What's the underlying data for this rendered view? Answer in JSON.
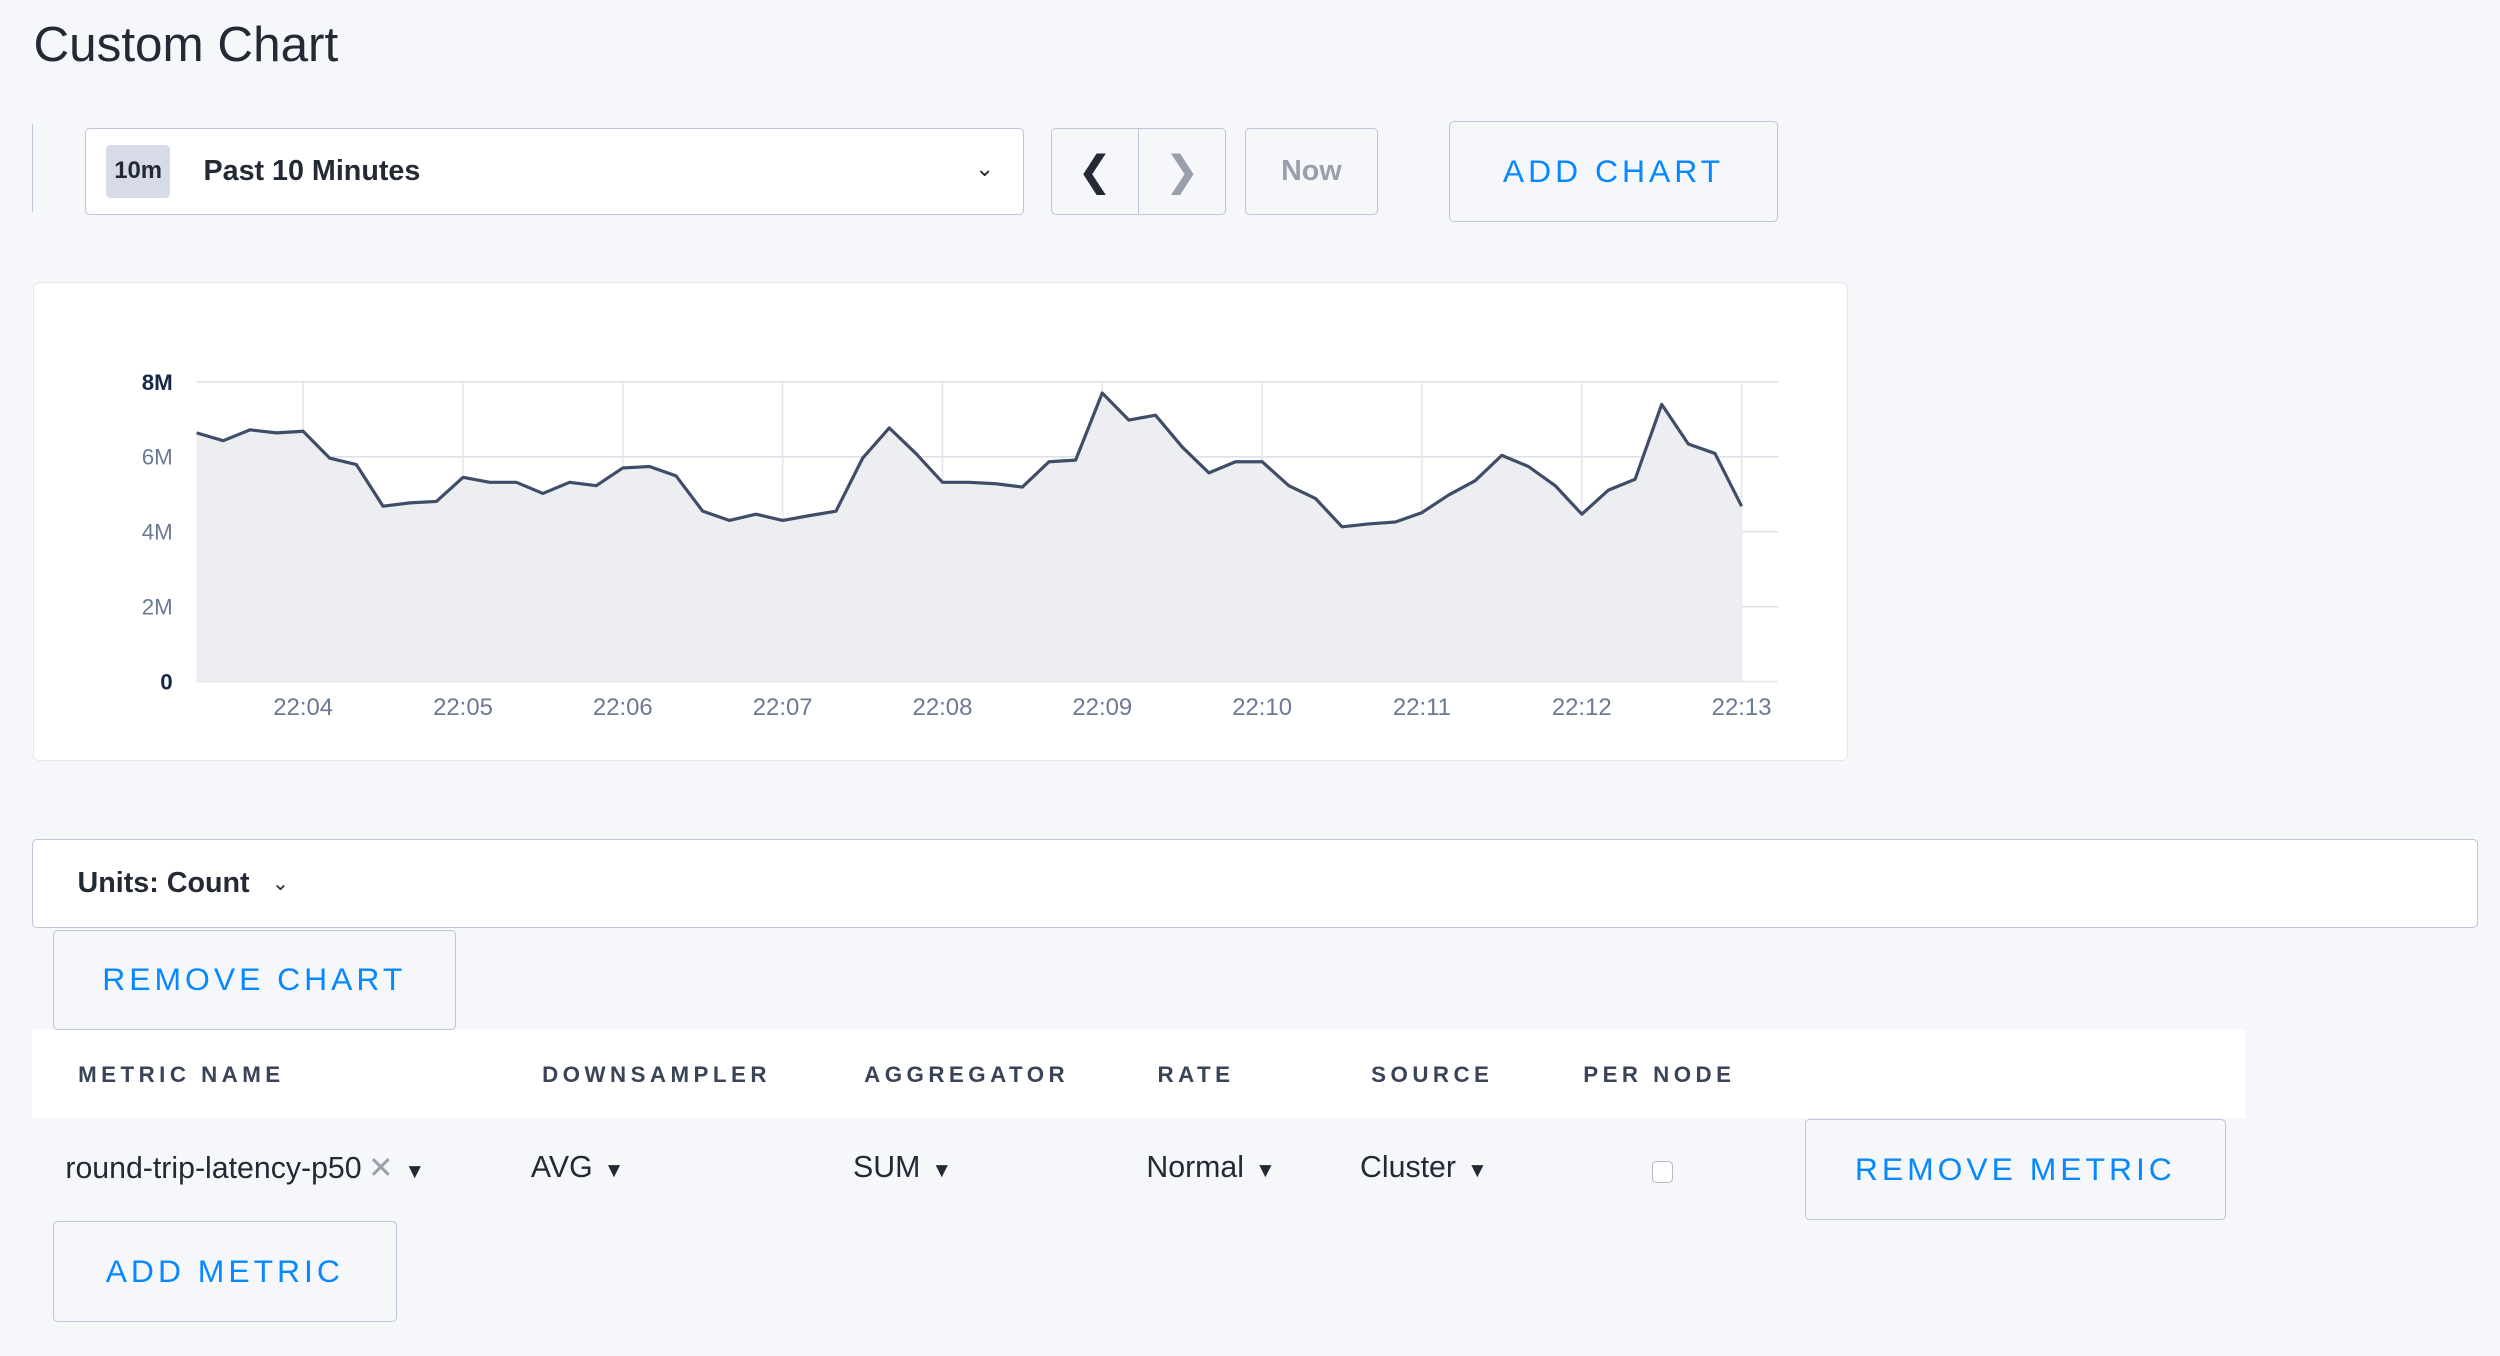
{
  "page": {
    "title": "Custom Chart"
  },
  "toolbar": {
    "range_badge": "10m",
    "range_label": "Past 10 Minutes",
    "prev_icon": "chevron-left-icon",
    "next_icon": "chevron-right-icon",
    "now_label": "Now",
    "add_chart_label": "ADD CHART"
  },
  "chart_data": {
    "type": "area",
    "y_ticks": [
      "0",
      "2M",
      "4M",
      "6M",
      "8M"
    ],
    "ylim": [
      0,
      8000000
    ],
    "x_ticks": [
      "22:04",
      "22:05",
      "22:06",
      "22:07",
      "22:08",
      "22:09",
      "22:10",
      "22:11",
      "22:12",
      "22:13"
    ],
    "xlim": [
      "22:03:20",
      "22:13:00"
    ],
    "grid": true,
    "line_color": "#3f4d67",
    "fill_color": "#eceef2",
    "x": [
      "22:03:20",
      "22:03:30",
      "22:03:40",
      "22:03:50",
      "22:04:00",
      "22:04:10",
      "22:04:20",
      "22:04:30",
      "22:04:40",
      "22:04:50",
      "22:05:00",
      "22:05:10",
      "22:05:20",
      "22:05:30",
      "22:05:40",
      "22:05:50",
      "22:06:00",
      "22:06:10",
      "22:06:20",
      "22:06:30",
      "22:06:40",
      "22:06:50",
      "22:07:00",
      "22:07:10",
      "22:07:20",
      "22:07:30",
      "22:07:40",
      "22:07:50",
      "22:08:00",
      "22:08:10",
      "22:08:20",
      "22:08:30",
      "22:08:40",
      "22:08:50",
      "22:09:00",
      "22:09:10",
      "22:09:20",
      "22:09:30",
      "22:09:40",
      "22:09:50",
      "22:10:00",
      "22:10:10",
      "22:10:20",
      "22:10:30",
      "22:10:40",
      "22:10:50",
      "22:11:00",
      "22:11:10",
      "22:11:20",
      "22:11:30",
      "22:11:40",
      "22:11:50",
      "22:12:00",
      "22:12:10",
      "22:12:20",
      "22:12:30",
      "22:12:40",
      "22:12:50",
      "22:13:00"
    ],
    "values": [
      6640000,
      6430000,
      6720000,
      6640000,
      6680000,
      5960000,
      5790000,
      4680000,
      4770000,
      4810000,
      5450000,
      5320000,
      5320000,
      5020000,
      5320000,
      5230000,
      5700000,
      5740000,
      5490000,
      4550000,
      4300000,
      4470000,
      4300000,
      4430000,
      4550000,
      5960000,
      6770000,
      6090000,
      5320000,
      5320000,
      5280000,
      5190000,
      5870000,
      5910000,
      7700000,
      6980000,
      7110000,
      6260000,
      5570000,
      5870000,
      5870000,
      5230000,
      4890000,
      4130000,
      4210000,
      4260000,
      4510000,
      4980000,
      5360000,
      6040000,
      5740000,
      5230000,
      4470000,
      5110000,
      5400000,
      7400000,
      6340000,
      6090000,
      4680000
    ]
  },
  "units": {
    "label": "Units: Count"
  },
  "remove_chart_label": "REMOVE CHART",
  "table": {
    "headers": [
      "METRIC NAME",
      "DOWNSAMPLER",
      "AGGREGATOR",
      "RATE",
      "SOURCE",
      "PER NODE"
    ],
    "row": {
      "metric": "round-trip-latency-p50",
      "downsampler": "AVG",
      "aggregator": "SUM",
      "rate": "Normal",
      "source": "Cluster",
      "per_node": false,
      "remove_label": "REMOVE METRIC"
    }
  },
  "add_metric_label": "ADD METRIC"
}
